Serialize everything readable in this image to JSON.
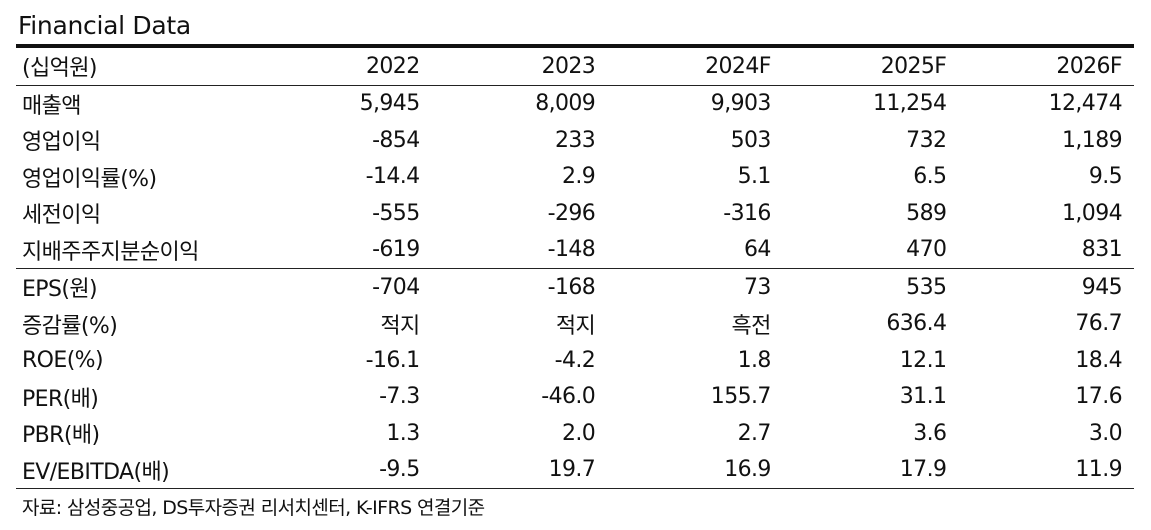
{
  "title": "Financial Data",
  "header": {
    "unit": "(십억원)",
    "years": [
      "2022",
      "2023",
      "2024F",
      "2025F",
      "2026F"
    ]
  },
  "rows": [
    {
      "label": "매출액",
      "values": [
        "5,945",
        "8,009",
        "9,903",
        "11,254",
        "12,474"
      ]
    },
    {
      "label": "영업이익",
      "values": [
        "-854",
        "233",
        "503",
        "732",
        "1,189"
      ]
    },
    {
      "label": "영업이익률(%)",
      "values": [
        "-14.4",
        "2.9",
        "5.1",
        "6.5",
        "9.5"
      ]
    },
    {
      "label": "세전이익",
      "values": [
        "-555",
        "-296",
        "-316",
        "589",
        "1,094"
      ]
    },
    {
      "label": "지배주주지분순이익",
      "values": [
        "-619",
        "-148",
        "64",
        "470",
        "831"
      ]
    },
    {
      "label": "EPS(원)",
      "values": [
        "-704",
        "-168",
        "73",
        "535",
        "945"
      ]
    },
    {
      "label": "증감률(%)",
      "values": [
        "적지",
        "적지",
        "흑전",
        "636.4",
        "76.7"
      ]
    },
    {
      "label": "ROE(%)",
      "values": [
        "-16.1",
        "-4.2",
        "1.8",
        "12.1",
        "18.4"
      ]
    },
    {
      "label": "PER(배)",
      "values": [
        "-7.3",
        "-46.0",
        "155.7",
        "31.1",
        "17.6"
      ]
    },
    {
      "label": "PBR(배)",
      "values": [
        "1.3",
        "2.0",
        "2.7",
        "3.6",
        "3.0"
      ]
    },
    {
      "label": "EV/EBITDA(배)",
      "values": [
        "-9.5",
        "19.7",
        "16.9",
        "17.9",
        "11.9"
      ]
    }
  ],
  "source": "자료: 삼성중공업, DS투자증권 리서치센터, K-IFRS 연결기준"
}
